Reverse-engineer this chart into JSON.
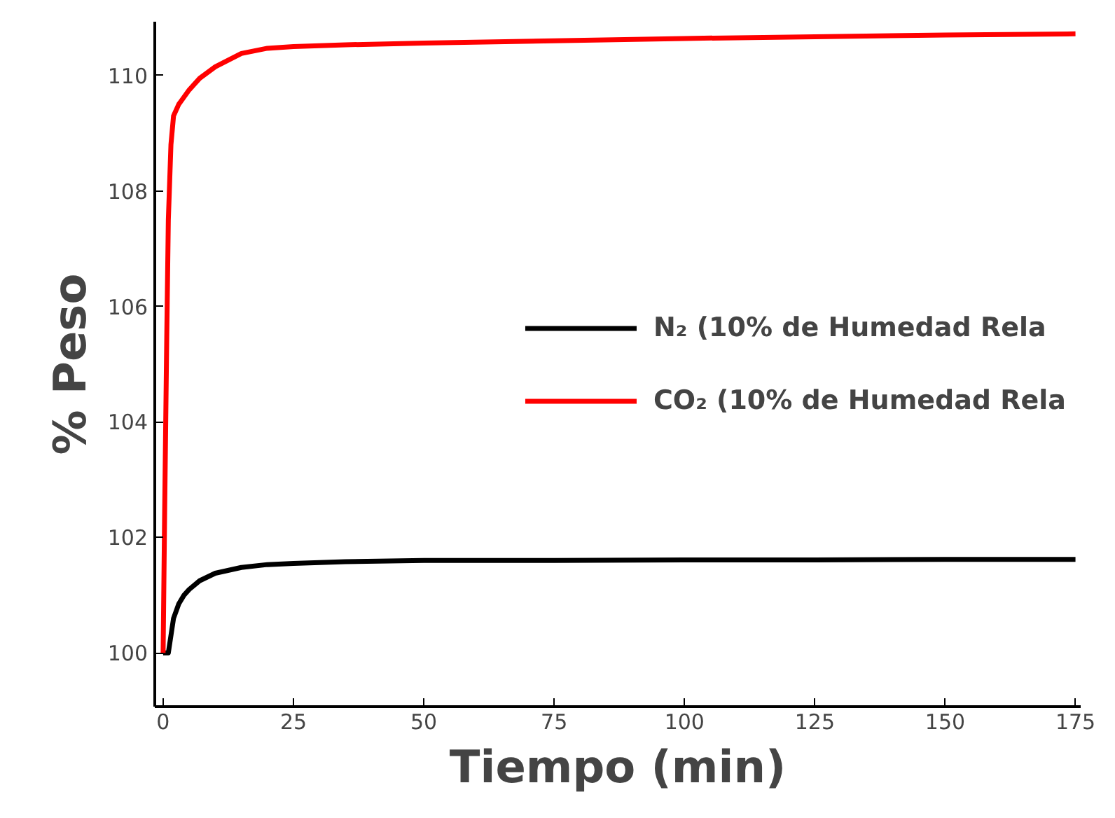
{
  "chart_data": {
    "type": "line",
    "xlabel": "Tiempo (min)",
    "ylabel": "% Peso",
    "xlim": [
      -1.6,
      176
    ],
    "ylim": [
      99.07,
      110.93
    ],
    "xticks": [
      0,
      25,
      50,
      75,
      100,
      125,
      150,
      175
    ],
    "yticks": [
      100,
      102,
      104,
      106,
      108,
      110
    ],
    "grid": false,
    "legend": "right",
    "marker": "none",
    "line_style": "solid",
    "series": [
      {
        "name": "N₂ (10% de Humedad Rela",
        "color": "#000000",
        "x": [
          0,
          1,
          2,
          3,
          4,
          5,
          7,
          10,
          15,
          20,
          25,
          35,
          50,
          75,
          100,
          125,
          150,
          175
        ],
        "values": [
          100,
          100,
          100.6,
          100.85,
          101.0,
          101.1,
          101.25,
          101.38,
          101.48,
          101.53,
          101.55,
          101.58,
          101.6,
          101.6,
          101.61,
          101.61,
          101.62,
          101.62
        ]
      },
      {
        "name": "CO₂ (10% de Humedad Rela",
        "color": "#ff0000",
        "x": [
          0,
          0.3,
          0.7,
          1,
          1.5,
          2,
          3,
          5,
          7,
          10,
          15,
          20,
          25,
          35,
          50,
          75,
          100,
          125,
          150,
          175
        ],
        "values": [
          100,
          102.5,
          105.5,
          107.5,
          108.8,
          109.3,
          109.5,
          109.75,
          109.95,
          110.15,
          110.38,
          110.47,
          110.5,
          110.53,
          110.56,
          110.6,
          110.64,
          110.67,
          110.7,
          110.72
        ]
      }
    ]
  }
}
